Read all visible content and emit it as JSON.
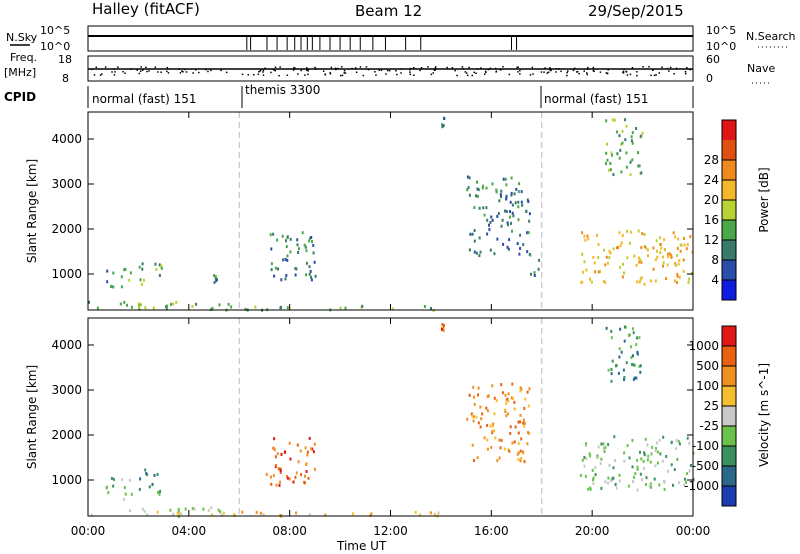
{
  "header": {
    "station": "Halley (fitACF)",
    "beam": "Beam 12",
    "date": "29/Sep/2015"
  },
  "top_panels": {
    "nsky_label": "N.Sky",
    "nsky_ticks": [
      "10^5",
      "10^0"
    ],
    "nsearch_label": "N.Search",
    "nsearch_ticks": [
      "10^5",
      "10^0"
    ],
    "freq_label": "Freq.",
    "freq_unit": "[MHz]",
    "freq_ticks": [
      "18",
      "8"
    ],
    "nave_label": "Nave",
    "nave_ticks": [
      "60",
      "0"
    ],
    "cpid_label": "CPID",
    "cpid_segments": [
      {
        "start_hour": 0,
        "end_hour": 6,
        "label": "normal (fast) 151"
      },
      {
        "start_hour": 6,
        "end_hour": 18,
        "label": "themis 3300"
      },
      {
        "start_hour": 18,
        "end_hour": 24,
        "label": "normal (fast) 151"
      }
    ]
  },
  "colorbar_power": {
    "label": "Power [dB]",
    "ticks": [
      "4",
      "8",
      "12",
      "16",
      "20",
      "24",
      "28"
    ],
    "colors": [
      "#0f1be0",
      "#2a4ea8",
      "#3a7a6a",
      "#4aa84a",
      "#b9d233",
      "#f5b82a",
      "#f08a1d",
      "#e05010",
      "#e01515"
    ]
  },
  "colorbar_velocity": {
    "label": "Velocity [m s^-1]",
    "ticks": [
      "1000",
      "500",
      "100",
      "25",
      "-25",
      "-100",
      "-500",
      "-1000"
    ],
    "colors": [
      "#1c3db0",
      "#2a6a88",
      "#3a9060",
      "#6ac24a",
      "#c8c8c8",
      "#f5c030",
      "#f09020",
      "#e86010",
      "#e01818"
    ]
  },
  "chart_data": [
    {
      "type": "heatmap",
      "name": "power",
      "ylabel": "Slant Range [km]",
      "ylim": [
        200,
        4600
      ],
      "xlim": [
        0,
        24
      ],
      "yticks": [
        1000,
        2000,
        3000,
        4000
      ],
      "xticks": [
        "00:00",
        "04:00",
        "08:00",
        "12:00",
        "16:00",
        "20:00",
        "00:00"
      ],
      "mode_change_hours": [
        6,
        18
      ],
      "echo_regions": [
        {
          "t0": 0.0,
          "t1": 6.0,
          "r0": 220,
          "r1": 420,
          "level": 3
        },
        {
          "t0": 0.7,
          "t1": 1.0,
          "r0": 700,
          "r1": 1100,
          "level": 2
        },
        {
          "t0": 1.3,
          "t1": 1.7,
          "r0": 600,
          "r1": 1200,
          "level": 4
        },
        {
          "t0": 2.0,
          "t1": 2.2,
          "r0": 800,
          "r1": 1300,
          "level": 3
        },
        {
          "t0": 2.6,
          "t1": 2.9,
          "r0": 700,
          "r1": 1300,
          "level": 3
        },
        {
          "t0": 4.9,
          "t1": 5.1,
          "r0": 800,
          "r1": 1000,
          "level": 2
        },
        {
          "t0": 6.0,
          "t1": 14.0,
          "r0": 220,
          "r1": 320,
          "level": 3
        },
        {
          "t0": 7.0,
          "t1": 9.0,
          "r0": 900,
          "r1": 2000,
          "level": 2
        },
        {
          "t0": 14.0,
          "t1": 14.1,
          "r0": 4300,
          "r1": 4500,
          "level": 2
        },
        {
          "t0": 15.0,
          "t1": 17.5,
          "r0": 1400,
          "r1": 3200,
          "level": 2
        },
        {
          "t0": 17.5,
          "t1": 17.9,
          "r0": 1000,
          "r1": 1500,
          "level": 2
        },
        {
          "t0": 20.5,
          "t1": 22.0,
          "r0": 3200,
          "r1": 4500,
          "level": 3
        },
        {
          "t0": 19.5,
          "t1": 24.0,
          "r0": 800,
          "r1": 2000,
          "level": 5
        }
      ]
    },
    {
      "type": "heatmap",
      "name": "velocity",
      "ylabel": "Slant Range [km]",
      "xlabel": "Time UT",
      "ylim": [
        200,
        4600
      ],
      "xlim": [
        0,
        24
      ],
      "yticks": [
        1000,
        2000,
        3000,
        4000
      ],
      "xticks": [
        "00:00",
        "04:00",
        "08:00",
        "12:00",
        "16:00",
        "20:00",
        "00:00"
      ],
      "mode_change_hours": [
        6,
        18
      ],
      "echo_regions": [
        {
          "t0": 0.0,
          "t1": 6.0,
          "r0": 220,
          "r1": 420,
          "level": 4
        },
        {
          "t0": 0.7,
          "t1": 1.0,
          "r0": 700,
          "r1": 1100,
          "level": 3
        },
        {
          "t0": 1.3,
          "t1": 1.7,
          "r0": 600,
          "r1": 1200,
          "level": 3
        },
        {
          "t0": 2.0,
          "t1": 2.9,
          "r0": 700,
          "r1": 1300,
          "level": 2
        },
        {
          "t0": 6.0,
          "t1": 14.0,
          "r0": 220,
          "r1": 320,
          "level": 5
        },
        {
          "t0": 7.0,
          "t1": 9.0,
          "r0": 900,
          "r1": 2000,
          "level": 7
        },
        {
          "t0": 14.0,
          "t1": 14.1,
          "r0": 4300,
          "r1": 4500,
          "level": 7
        },
        {
          "t0": 15.0,
          "t1": 17.5,
          "r0": 1400,
          "r1": 3200,
          "level": 6
        },
        {
          "t0": 20.5,
          "t1": 22.0,
          "r0": 3200,
          "r1": 4500,
          "level": 2
        },
        {
          "t0": 19.5,
          "t1": 24.0,
          "r0": 800,
          "r1": 2000,
          "level": 3
        }
      ]
    }
  ]
}
